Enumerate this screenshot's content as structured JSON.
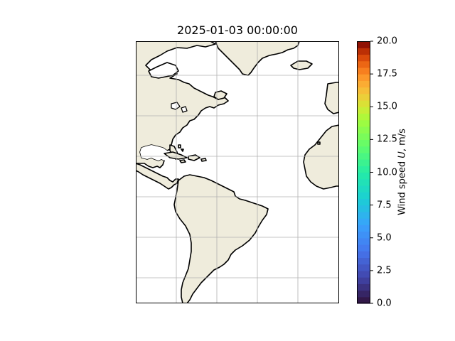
{
  "title": "2025-01-03 00:00:00",
  "map": {
    "region": "Atlantic Ocean (Americas to West Africa)",
    "land_color": "#efecdc",
    "ocean_color": "#ffffff",
    "coastline_color": "#000000",
    "gridlines": true,
    "gridline_color": "#b0b0b0"
  },
  "colorbar": {
    "label_prefix": "Wind speed ",
    "label_var": "U",
    "label_suffix": ", m/s",
    "min": 0.0,
    "max": 20.0,
    "ticks": [
      "0.0",
      "2.5",
      "5.0",
      "7.5",
      "10.0",
      "12.5",
      "15.0",
      "17.5",
      "20.0"
    ],
    "colormap": "turbo",
    "levels": 40
  }
}
